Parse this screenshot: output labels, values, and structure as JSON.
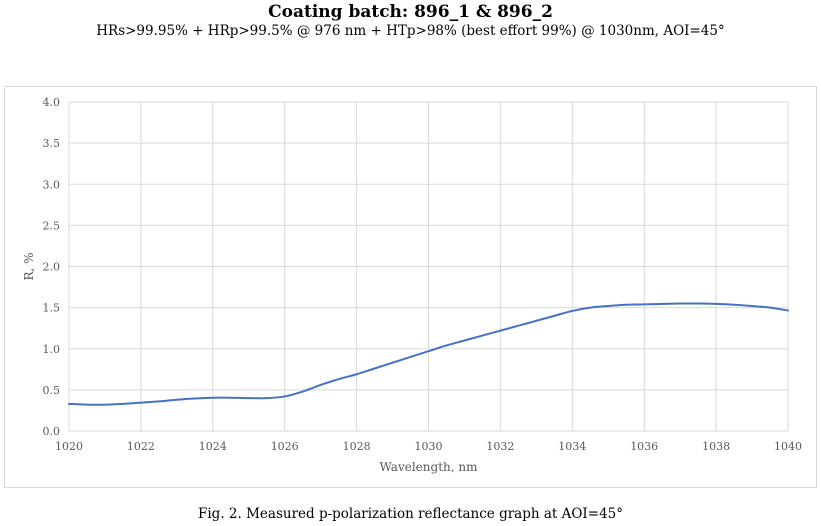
{
  "header": {
    "title": "Coating batch: 896_1 & 896_2",
    "subtitle": "HRs>99.95% + HRp>99.5% @ 976 nm + HTp>98% (best effort 99%) @ 1030nm, AOI=45°"
  },
  "caption": "Fig. 2. Measured p-polarization reflectance graph at AOI=45°",
  "chart_data": {
    "type": "line",
    "title": "",
    "xlabel": "Wavelength, nm",
    "ylabel": "R, %",
    "xlim": [
      1020,
      1040
    ],
    "ylim": [
      0,
      4
    ],
    "xticks": [
      "1020",
      "1022",
      "1024",
      "1026",
      "1028",
      "1030",
      "1032",
      "1034",
      "1036",
      "1038",
      "1040"
    ],
    "yticks": [
      "0.0",
      "0.5",
      "1.0",
      "1.5",
      "2.0",
      "2.5",
      "3.0",
      "3.5",
      "4.0"
    ],
    "grid": true,
    "legend": "none",
    "line_color": "#4472c4",
    "series": [
      {
        "x": [
          1020,
          1020.5,
          1021,
          1021.5,
          1022,
          1022.5,
          1023,
          1023.5,
          1024,
          1024.5,
          1025,
          1025.5,
          1026,
          1026.5,
          1027,
          1027.5,
          1028,
          1028.5,
          1029,
          1029.5,
          1030,
          1030.5,
          1031,
          1031.5,
          1032,
          1032.5,
          1033,
          1033.5,
          1034,
          1034.5,
          1035,
          1035.5,
          1036,
          1036.5,
          1037,
          1037.5,
          1038,
          1038.5,
          1039,
          1039.5,
          1040
        ],
        "y": [
          0.33,
          0.32,
          0.32,
          0.33,
          0.345,
          0.36,
          0.38,
          0.395,
          0.405,
          0.405,
          0.4,
          0.4,
          0.42,
          0.48,
          0.56,
          0.63,
          0.69,
          0.76,
          0.83,
          0.9,
          0.97,
          1.04,
          1.1,
          1.16,
          1.22,
          1.28,
          1.34,
          1.4,
          1.46,
          1.5,
          1.52,
          1.535,
          1.54,
          1.545,
          1.55,
          1.55,
          1.545,
          1.535,
          1.52,
          1.5,
          1.465
        ]
      }
    ]
  }
}
